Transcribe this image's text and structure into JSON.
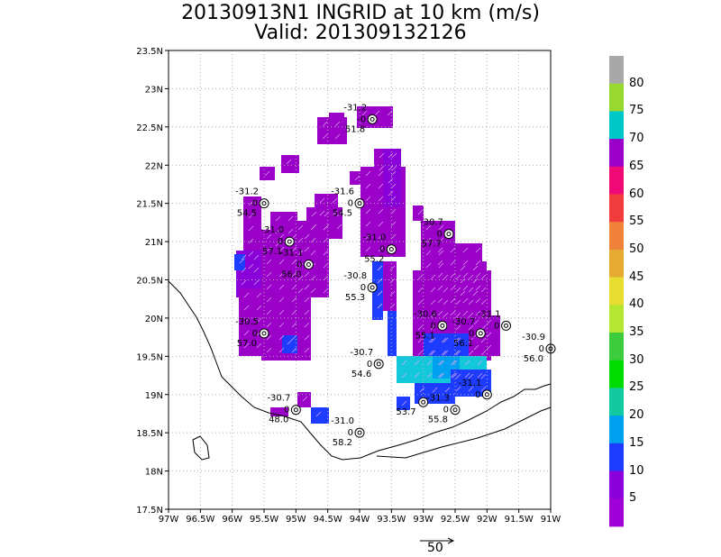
{
  "title": {
    "line1": "20130913N1 INGRID at 10 km (m/s)",
    "line2": "Valid: 201309132126"
  },
  "axes": {
    "x_ticks": [
      "97W",
      "96.5W",
      "96W",
      "95.5W",
      "95W",
      "94.5W",
      "94W",
      "93.5W",
      "93W",
      "92.5W",
      "92W",
      "91.5W",
      "91W"
    ],
    "x_values": [
      -97,
      -96.5,
      -96,
      -95.5,
      -95,
      -94.5,
      -94,
      -93.5,
      -93,
      -92.5,
      -92,
      -91.5,
      -91
    ],
    "y_ticks": [
      "23.5N",
      "23N",
      "22.5N",
      "22N",
      "21.5N",
      "21N",
      "20.5N",
      "20N",
      "19.5N",
      "19N",
      "18.5N",
      "18N",
      "17.5N"
    ],
    "y_values": [
      23.5,
      23,
      22.5,
      22,
      21.5,
      21,
      20.5,
      20,
      19.5,
      19,
      18.5,
      18,
      17.5
    ],
    "xlim": [
      -97,
      -91
    ],
    "ylim": [
      17.5,
      23.5
    ],
    "grid": true
  },
  "colorbar": {
    "labels": [
      "80",
      "75",
      "70",
      "65",
      "60",
      "55",
      "50",
      "45",
      "40",
      "35",
      "30",
      "25",
      "20",
      "15",
      "10",
      "5"
    ],
    "colors": [
      "#a8a8a8",
      "#98d830",
      "#00c8c8",
      "#9a00c8",
      "#f00a78",
      "#f03c3c",
      "#f0823c",
      "#e6aa32",
      "#e6dc32",
      "#b4e632",
      "#3ccc3c",
      "#00dc00",
      "#14c8a0",
      "#00a0f0",
      "#1e3cff",
      "#8c00dc",
      "#a000d8"
    ]
  },
  "scale_vector": {
    "label": "50"
  },
  "stations": [
    {
      "id": "s1",
      "lon": -95.5,
      "lat": 21.5,
      "a": "-31.2",
      "b": "0",
      "c": "54.5"
    },
    {
      "id": "s2",
      "lon": -94.0,
      "lat": 21.5,
      "a": "-31.6",
      "b": "0",
      "c": "54.5"
    },
    {
      "id": "s3",
      "lon": -93.8,
      "lat": 22.6,
      "a": "-31.2",
      "b": "-0",
      "c": "51.8"
    },
    {
      "id": "s4",
      "lon": -95.1,
      "lat": 21.0,
      "a": "-31.0",
      "b": "0",
      "c": "57.1"
    },
    {
      "id": "s5",
      "lon": -94.8,
      "lat": 20.7,
      "a": "-31.1",
      "b": "0",
      "c": "56.0"
    },
    {
      "id": "s6",
      "lon": -93.5,
      "lat": 20.9,
      "a": "-31.0",
      "b": "0",
      "c": "55.2"
    },
    {
      "id": "s7",
      "lon": -92.6,
      "lat": 21.1,
      "a": "-30.7",
      "b": "0",
      "c": "57.7"
    },
    {
      "id": "s8",
      "lon": -93.8,
      "lat": 20.4,
      "a": "-30.8",
      "b": "0",
      "c": "55.3"
    },
    {
      "id": "s9",
      "lon": -95.5,
      "lat": 19.8,
      "a": "-30.5",
      "b": "0",
      "c": "57.0"
    },
    {
      "id": "s10",
      "lon": -92.7,
      "lat": 19.9,
      "a": "-30.6",
      "b": "0",
      "c": "55.1"
    },
    {
      "id": "s11",
      "lon": -92.1,
      "lat": 19.8,
      "a": "-30.7",
      "b": "0",
      "c": "56.1"
    },
    {
      "id": "s12",
      "lon": -91.7,
      "lat": 19.9,
      "a": "-31.1",
      "b": "0",
      "c": ""
    },
    {
      "id": "s13",
      "lon": -91.0,
      "lat": 19.6,
      "a": "-30.9",
      "b": "0",
      "c": "56.0"
    },
    {
      "id": "s14",
      "lon": -93.7,
      "lat": 19.4,
      "a": "-30.7",
      "b": "0",
      "c": "54.6"
    },
    {
      "id": "s15",
      "lon": -92.0,
      "lat": 19.0,
      "a": "-31.1",
      "b": "0",
      "c": ""
    },
    {
      "id": "s16",
      "lon": -92.5,
      "lat": 18.8,
      "a": "-31.3",
      "b": "0",
      "c": "55.8"
    },
    {
      "id": "s17",
      "lon": -93.0,
      "lat": 18.9,
      "a": "",
      "b": "",
      "c": "53.7"
    },
    {
      "id": "s18",
      "lon": -95.0,
      "lat": 18.8,
      "a": "-30.7",
      "b": "0",
      "c": "48.0"
    },
    {
      "id": "s19",
      "lon": -94.0,
      "lat": 18.5,
      "a": "-31.0",
      "b": "0",
      "c": "58.2"
    }
  ]
}
